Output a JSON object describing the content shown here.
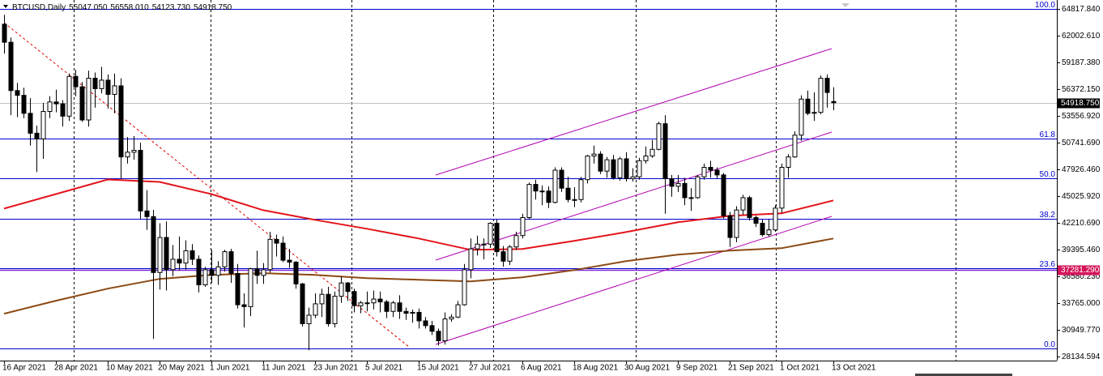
{
  "chart_data": {
    "type": "candlestick",
    "header": {
      "symbol": "BTCUSD,Daily",
      "ohlc": [
        "55047.050",
        "56558.010",
        "54123.730",
        "54918.750"
      ]
    },
    "categories": [
      "16 Apr 2021",
      null,
      null,
      null,
      null,
      null,
      null,
      null,
      "28 Apr 2021",
      null,
      null,
      null,
      null,
      null,
      null,
      null,
      "10 May 2021",
      null,
      null,
      null,
      null,
      null,
      null,
      null,
      "20 May 2021",
      null,
      null,
      null,
      null,
      null,
      null,
      null,
      "1 Jun 2021",
      null,
      null,
      null,
      null,
      null,
      null,
      null,
      "11 Jun 2021",
      null,
      null,
      null,
      null,
      null,
      null,
      null,
      "23 Jun 2021",
      null,
      null,
      null,
      null,
      null,
      null,
      null,
      "5 Jul 2021",
      null,
      null,
      null,
      null,
      null,
      null,
      null,
      "15 Jul 2021",
      null,
      null,
      null,
      null,
      null,
      null,
      null,
      "27 Jul 2021",
      null,
      null,
      null,
      null,
      null,
      null,
      null,
      "6 Aug 2021",
      null,
      null,
      null,
      null,
      null,
      null,
      null,
      "18 Aug 2021",
      null,
      null,
      null,
      null,
      null,
      null,
      null,
      "30 Aug 2021",
      null,
      null,
      null,
      null,
      null,
      null,
      null,
      "9 Sep 2021",
      null,
      null,
      null,
      null,
      null,
      null,
      null,
      "21 Sep 2021",
      null,
      null,
      null,
      null,
      null,
      null,
      null,
      "1 Oct 2021",
      null,
      null,
      null,
      null,
      null,
      null,
      null,
      "13 Oct 2021"
    ],
    "open": [
      63200,
      61300,
      56200,
      55700,
      53800,
      51700,
      51100,
      54000,
      55000,
      54800,
      53500,
      57700,
      56600,
      53100,
      57500,
      56400,
      57300,
      55800,
      56700,
      49200,
      49700,
      49900,
      43500,
      42900,
      37000,
      40700,
      37300,
      38400,
      38000,
      39300,
      38400,
      35700,
      37300,
      36700,
      37600,
      39200,
      36900,
      33600,
      33400,
      37400,
      36700,
      37300,
      40500,
      40100,
      38300,
      38100,
      35800,
      31600,
      32500,
      33700,
      34700,
      31600,
      34500,
      35900,
      35000,
      33500,
      33800,
      33800,
      34200,
      33900,
      32900,
      33800,
      32900,
      32700,
      32800,
      31900,
      31400,
      30800,
      29800,
      32100,
      32300,
      33600,
      37300,
      39500,
      40000,
      40000,
      42200,
      39200,
      38200,
      39700,
      40900,
      42800,
      46300,
      45600,
      45600,
      44400,
      47800,
      45900,
      44700,
      44700,
      46800,
      49300,
      49500,
      47700,
      48900,
      47000,
      49000,
      46900,
      47100,
      48800,
      49300,
      50000,
      52700,
      46900,
      46100,
      46400,
      44900,
      44900,
      47100,
      48100,
      47800,
      47300,
      43000,
      40700,
      43600,
      44900,
      42800,
      42200,
      41000,
      41500,
      43800,
      48100,
      49200,
      51500,
      55300,
      53800,
      53900,
      57500,
      55047.05
    ],
    "high": [
      64200,
      61800,
      57000,
      56500,
      55400,
      52500,
      54900,
      55600,
      56300,
      55200,
      58000,
      58400,
      57100,
      58300,
      58100,
      58700,
      57900,
      58000,
      57500,
      51300,
      51400,
      50700,
      45700,
      43600,
      42200,
      42400,
      39900,
      40800,
      40400,
      40000,
      38800,
      37600,
      39400,
      38200,
      39400,
      39500,
      37900,
      34800,
      37500,
      39300,
      38000,
      41300,
      41000,
      40800,
      39500,
      38200,
      35900,
      33300,
      34800,
      35300,
      35500,
      35000,
      36600,
      36000,
      35300,
      34000,
      35000,
      35100,
      35000,
      34100,
      34000,
      34600,
      33300,
      33100,
      33200,
      32300,
      31900,
      31100,
      32800,
      32600,
      34000,
      37900,
      40600,
      40900,
      40600,
      42300,
      42600,
      39800,
      39900,
      41300,
      43200,
      46500,
      46800,
      46200,
      46100,
      48100,
      48100,
      47100,
      46000,
      47100,
      49400,
      50400,
      49800,
      49200,
      49400,
      49200,
      49700,
      48000,
      49100,
      50300,
      51000,
      52900,
      53600,
      47300,
      47300,
      47000,
      45900,
      47300,
      48500,
      48800,
      48100,
      47500,
      43400,
      44000,
      45200,
      45100,
      43000,
      42600,
      42600,
      44100,
      48500,
      49500,
      51900,
      55700,
      56200,
      56000,
      57800,
      57900,
      56558.01
    ],
    "low": [
      60100,
      53600,
      53400,
      53300,
      50400,
      47600,
      49000,
      53300,
      53900,
      52400,
      53000,
      55600,
      52900,
      52400,
      54400,
      55900,
      54300,
      53800,
      46900,
      48500,
      48900,
      42600,
      41500,
      30000,
      35200,
      35100,
      36600,
      37200,
      37300,
      37800,
      34900,
      35500,
      35900,
      35700,
      37100,
      35900,
      33200,
      31200,
      32400,
      35800,
      35800,
      37000,
      38700,
      38100,
      37500,
      35300,
      31300,
      28800,
      32200,
      32300,
      31300,
      31200,
      33800,
      34000,
      32800,
      32700,
      32900,
      33100,
      32800,
      32200,
      32300,
      32100,
      32000,
      31700,
      31100,
      31100,
      30400,
      29300,
      29400,
      31800,
      32200,
      33500,
      36400,
      38800,
      38400,
      39600,
      38700,
      37600,
      37800,
      39400,
      40600,
      42600,
      44700,
      44100,
      43800,
      44300,
      45500,
      44400,
      43900,
      44400,
      46400,
      48500,
      47400,
      47000,
      46800,
      46700,
      46600,
      46600,
      46800,
      48500,
      49100,
      49900,
      43200,
      45000,
      45500,
      44100,
      43500,
      44800,
      46800,
      47000,
      46900,
      42700,
      39700,
      40200,
      43100,
      42500,
      41800,
      40800,
      40800,
      41300,
      43300,
      47000,
      49100,
      50900,
      53600,
      53000,
      53700,
      54400,
      54123.73
    ],
    "close": [
      61300,
      56200,
      55700,
      53800,
      51700,
      51100,
      54000,
      55000,
      54800,
      53500,
      57700,
      56600,
      53100,
      57500,
      56400,
      57300,
      55800,
      56700,
      49200,
      49700,
      49900,
      43500,
      42900,
      37000,
      40700,
      37300,
      38400,
      38000,
      39300,
      38400,
      35700,
      37300,
      36700,
      37600,
      39200,
      36900,
      33600,
      33400,
      37400,
      36700,
      37300,
      40500,
      40100,
      38300,
      38100,
      35800,
      31600,
      32500,
      33700,
      34700,
      31600,
      34500,
      35900,
      35000,
      33500,
      33800,
      33800,
      34200,
      33900,
      32900,
      33800,
      32900,
      32700,
      32800,
      31900,
      31400,
      30800,
      29800,
      32100,
      32300,
      33600,
      37300,
      39500,
      40000,
      40000,
      42200,
      39200,
      38200,
      39700,
      40900,
      42800,
      46300,
      45600,
      45600,
      44400,
      47800,
      45900,
      44700,
      44700,
      46800,
      49300,
      49500,
      47700,
      48900,
      47000,
      49000,
      46900,
      47100,
      48800,
      49300,
      50000,
      52700,
      46900,
      46100,
      46400,
      44900,
      44900,
      47100,
      48100,
      47800,
      47300,
      43000,
      40700,
      43600,
      44900,
      42800,
      42200,
      41000,
      41500,
      43800,
      48100,
      49200,
      51500,
      55300,
      53800,
      53900,
      57500,
      56000,
      54918.75
    ],
    "bull_color": "#ffffff",
    "bear_color": "#000000",
    "outline_color": "#000000",
    "moving_averages": [
      {
        "color": "#e3141b",
        "values": [
          43750,
          45280,
          46820,
          46560,
          45280,
          43580,
          42560,
          41620,
          40590,
          39400,
          39480,
          40340,
          41270,
          42300,
          42980,
          43240,
          44600
        ]
      },
      {
        "color": "#8b4a14",
        "values": [
          32660,
          34030,
          35300,
          36330,
          36750,
          36930,
          36750,
          36410,
          36240,
          36070,
          36500,
          37260,
          38200,
          38880,
          39310,
          39570,
          40590
        ]
      }
    ],
    "fibonacci": {
      "high": 64818,
      "low": 28990,
      "color": "#0000cc",
      "levels": [
        {
          "value": 100,
          "label": "100.0"
        },
        {
          "value": 61.8,
          "label": "61.8"
        },
        {
          "value": 50,
          "label": "50.0"
        },
        {
          "value": 38.2,
          "label": "38.2"
        },
        {
          "value": 23.6,
          "label": "23.6"
        },
        {
          "value": 0,
          "label": "0.0"
        }
      ]
    },
    "last_price": {
      "value": 54918.75,
      "label": "54918.750",
      "color": "#c0c0c0"
    },
    "level_line": {
      "value": 37281.29,
      "label": "37281.290",
      "color": "#7a2ad6",
      "label_color": "#d4145a"
    },
    "ylim": [
      27707,
      65758
    ],
    "yticks": [
      {
        "value": 64817.84,
        "label": "64817.840"
      },
      {
        "value": 62002.61,
        "label": "62002.610"
      },
      {
        "value": 59187.38,
        "label": "59187.380"
      },
      {
        "value": 56372.15,
        "label": "56372.150"
      },
      {
        "value": 53556.92,
        "label": "53556.920"
      },
      {
        "value": 50741.69,
        "label": "50741.690"
      },
      {
        "value": 47926.46,
        "label": "47926.460"
      },
      {
        "value": 45025.92,
        "label": "45025.920"
      },
      {
        "value": 42210.69,
        "label": "42210.690"
      },
      {
        "value": 39395.46,
        "label": "39395.460"
      },
      {
        "value": 36580.23,
        "label": "36580.230"
      },
      {
        "value": 33765,
        "label": "33765.000"
      },
      {
        "value": 30949.77,
        "label": "30949.770"
      },
      {
        "value": 28134.594,
        "label": "28134.594"
      }
    ]
  }
}
